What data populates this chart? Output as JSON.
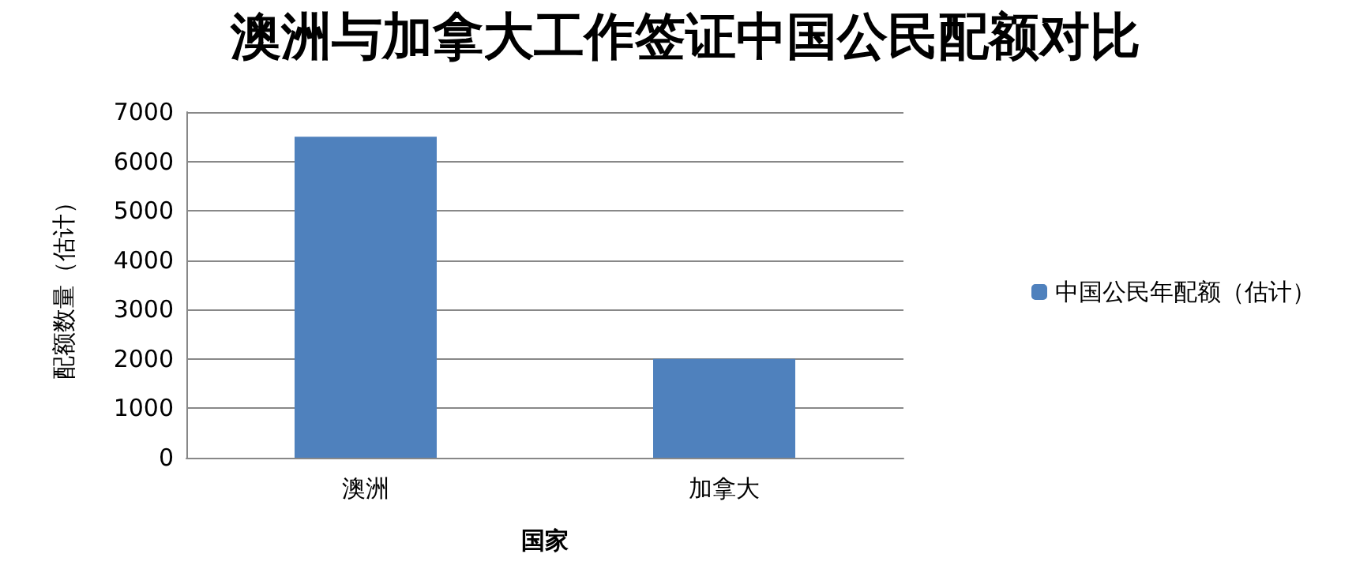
{
  "chart_data": {
    "type": "bar",
    "title": "澳洲与加拿大工作签证中国公民配额对比",
    "xlabel": "国家",
    "ylabel": "配额数量（估计）",
    "categories": [
      "澳洲",
      "加拿大"
    ],
    "series": [
      {
        "name": "中国公民年配额（估计）",
        "color": "#4f81bd",
        "values": [
          6500,
          2000
        ]
      }
    ],
    "ylim": [
      0,
      7000
    ],
    "yticks": [
      0,
      1000,
      2000,
      3000,
      4000,
      5000,
      6000,
      7000
    ],
    "grid": "y",
    "legend": "right"
  }
}
